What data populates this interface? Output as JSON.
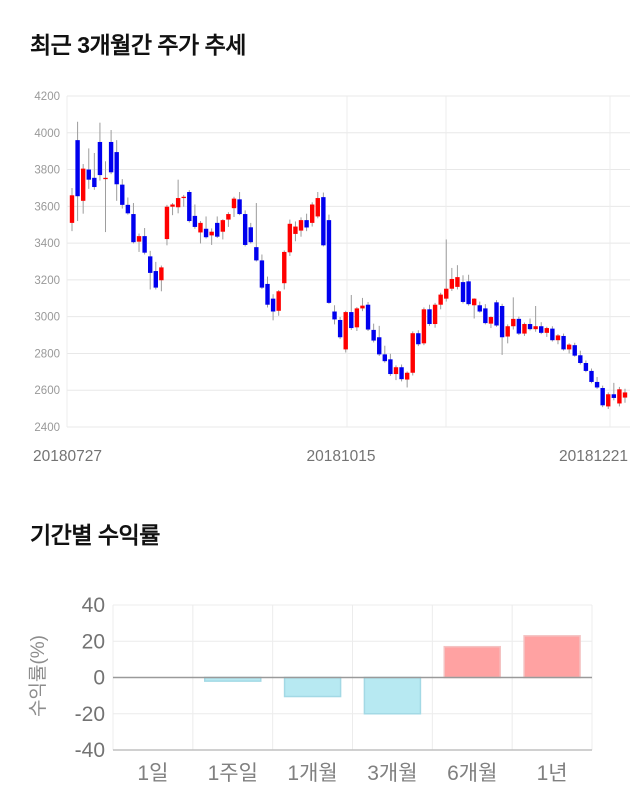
{
  "chart_data": [
    {
      "type": "candlestick",
      "title": "최근 3개월간 주가 추세",
      "x_labels": [
        "20180727",
        "20181015",
        "20181221"
      ],
      "y_ticks": [
        4200,
        4000,
        3800,
        3600,
        3400,
        3200,
        3000,
        2800,
        2600,
        2400
      ],
      "ylim": [
        2400,
        4200
      ],
      "grid": true,
      "up_color": "#ff0000",
      "down_color": "#0000ee",
      "wick_color": "#9c9c9c",
      "candles": [
        [
          3510,
          3700,
          3465,
          3660
        ],
        [
          3960,
          4060,
          3520,
          3655
        ],
        [
          3630,
          3830,
          3560,
          3805
        ],
        [
          3800,
          3915,
          3695,
          3745
        ],
        [
          3755,
          3890,
          3690,
          3705
        ],
        [
          3950,
          4055,
          3740,
          3770
        ],
        [
          3750,
          3845,
          3460,
          3755
        ],
        [
          3950,
          4015,
          3775,
          3785
        ],
        [
          3895,
          3960,
          3630,
          3720
        ],
        [
          3718,
          3748,
          3588,
          3608
        ],
        [
          3608,
          3648,
          3555,
          3562
        ],
        [
          3558,
          3618,
          3398,
          3405
        ],
        [
          3408,
          3452,
          3352,
          3438
        ],
        [
          3438,
          3482,
          3338,
          3348
        ],
        [
          3328,
          3358,
          3148,
          3238
        ],
        [
          3248,
          3298,
          3148,
          3158
        ],
        [
          3198,
          3278,
          3138,
          3268
        ],
        [
          3422,
          3608,
          3388,
          3598
        ],
        [
          3598,
          3618,
          3552,
          3610
        ],
        [
          3595,
          3745,
          3562,
          3645
        ],
        [
          3645,
          3662,
          3598,
          3652
        ],
        [
          3678,
          3688,
          3512,
          3520
        ],
        [
          3548,
          3610,
          3478,
          3488
        ],
        [
          3458,
          3520,
          3398,
          3510
        ],
        [
          3478,
          3545,
          3425,
          3432
        ],
        [
          3442,
          3480,
          3390,
          3462
        ],
        [
          3510,
          3545,
          3428,
          3435
        ],
        [
          3462,
          3530,
          3420,
          3525
        ],
        [
          3528,
          3568,
          3488,
          3558
        ],
        [
          3590,
          3652,
          3542,
          3642
        ],
        [
          3638,
          3678,
          3552,
          3558
        ],
        [
          3558,
          3578,
          3382,
          3390
        ],
        [
          3486,
          3510,
          3398,
          3405
        ],
        [
          3378,
          3618,
          3300,
          3306
        ],
        [
          3306,
          3338,
          3150,
          3158
        ],
        [
          3178,
          3218,
          3050,
          3065
        ],
        [
          3098,
          3122,
          2980,
          3028
        ],
        [
          3032,
          3145,
          3005,
          3138
        ],
        [
          3182,
          3360,
          3148,
          3352
        ],
        [
          3350,
          3528,
          3330,
          3505
        ],
        [
          3450,
          3518,
          3410,
          3490
        ],
        [
          3468,
          3540,
          3435,
          3525
        ],
        [
          3525,
          3560,
          3465,
          3485
        ],
        [
          3510,
          3622,
          3490,
          3610
        ],
        [
          3545,
          3678,
          3535,
          3645
        ],
        [
          3650,
          3675,
          3382,
          3388
        ],
        [
          3525,
          3555,
          3070,
          3075
        ],
        [
          3028,
          3062,
          2958,
          2985
        ],
        [
          2982,
          2998,
          2878,
          2888
        ],
        [
          2822,
          3032,
          2805,
          3025
        ],
        [
          3025,
          3118,
          2928,
          2938
        ],
        [
          2942,
          3052,
          2922,
          3045
        ],
        [
          3045,
          3102,
          3030,
          3060
        ],
        [
          3065,
          3080,
          2922,
          2930
        ],
        [
          2928,
          2962,
          2860,
          2870
        ],
        [
          2888,
          2950,
          2786,
          2795
        ],
        [
          2795,
          2842,
          2750,
          2758
        ],
        [
          2768,
          2798,
          2678,
          2688
        ],
        [
          2688,
          2735,
          2655,
          2725
        ],
        [
          2725,
          2740,
          2648,
          2660
        ],
        [
          2658,
          2702,
          2615,
          2695
        ],
        [
          2695,
          2920,
          2680,
          2910
        ],
        [
          2910,
          2926,
          2840,
          2850
        ],
        [
          2855,
          3050,
          2845,
          3040
        ],
        [
          3040,
          3065,
          2950,
          2960
        ],
        [
          2960,
          3075,
          2940,
          3065
        ],
        [
          3065,
          3130,
          3040,
          3120
        ],
        [
          3098,
          3420,
          3082,
          3152
        ],
        [
          3152,
          3265,
          3140,
          3205
        ],
        [
          3162,
          3280,
          3148,
          3215
        ],
        [
          3188,
          3225,
          3072,
          3080
        ],
        [
          3192,
          3228,
          3060,
          3068
        ],
        [
          3062,
          3100,
          2990,
          3098
        ],
        [
          3062,
          3082,
          3022,
          3028
        ],
        [
          3045,
          3068,
          2958,
          2965
        ],
        [
          2962,
          3002,
          2938,
          2998
        ],
        [
          3078,
          3090,
          2945,
          2952
        ],
        [
          3058,
          3070,
          2792,
          2888
        ],
        [
          2892,
          2958,
          2855,
          2948
        ],
        [
          2948,
          3105,
          2930,
          2988
        ],
        [
          2988,
          3000,
          2900,
          2908
        ],
        [
          2908,
          2968,
          2895,
          2960
        ],
        [
          2960,
          2990,
          2925,
          2932
        ],
        [
          2932,
          3058,
          2918,
          2948
        ],
        [
          2948,
          2970,
          2905,
          2912
        ],
        [
          2912,
          2945,
          2890,
          2938
        ],
        [
          2935,
          2948,
          2865,
          2872
        ],
        [
          2872,
          2905,
          2850,
          2898
        ],
        [
          2895,
          2908,
          2815,
          2822
        ],
        [
          2822,
          2855,
          2800,
          2848
        ],
        [
          2845,
          2858,
          2782,
          2788
        ],
        [
          2790,
          2815,
          2740,
          2748
        ],
        [
          2748,
          2762,
          2698,
          2705
        ],
        [
          2705,
          2718,
          2638,
          2645
        ],
        [
          2645,
          2672,
          2608,
          2615
        ],
        [
          2612,
          2625,
          2508,
          2518
        ],
        [
          2512,
          2588,
          2498,
          2578
        ],
        [
          2578,
          2640,
          2545,
          2558
        ],
        [
          2528,
          2618,
          2512,
          2605
        ],
        [
          2560,
          2608,
          2532,
          2588
        ]
      ]
    },
    {
      "type": "bar",
      "title": "기간별 수익률",
      "ylabel": "수익률(%)",
      "categories": [
        "1일",
        "1주일",
        "1개월",
        "3개월",
        "6개월",
        "1년"
      ],
      "values": [
        0,
        -2,
        -10.5,
        -20,
        17,
        23
      ],
      "yticks": [
        40,
        20,
        0,
        -20,
        -40
      ],
      "ylim": [
        -40,
        40
      ],
      "grid": true,
      "positive_color": "#ffa2a2",
      "positive_border": "#f4c2c2",
      "negative_color": "#b7e9f2",
      "negative_border": "#a3d9e5"
    }
  ]
}
